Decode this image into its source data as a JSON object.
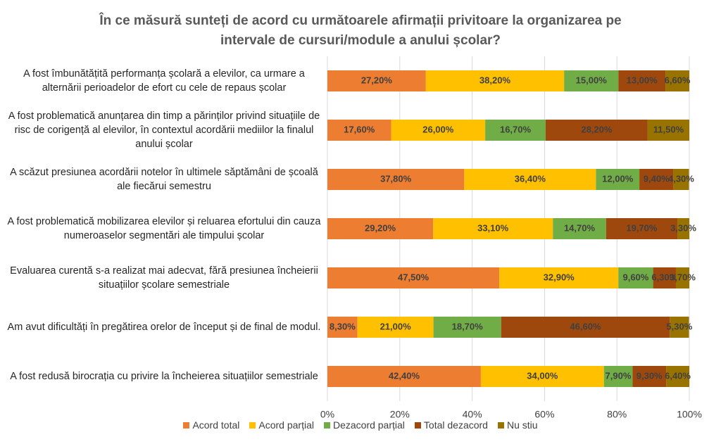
{
  "chart_data": {
    "type": "stacked_bar_horizontal",
    "title": "În ce măsură sunteți de acord cu următoarele afirmații privitoare la organizarea pe intervale de cursuri/module a anului școlar?",
    "categories": [
      "A fost îmbunătățită performanța școlară a elevilor, ca urmare a alternării perioadelor de efort cu cele de repaus școlar",
      "A fost problematică anunțarea din timp a părinților privind situațiile de risc de corigență al elevilor, în contextul acordării mediilor la finalul anului școlar",
      "A scăzut presiunea acordării notelor în ultimele săptămâni de școală ale fiecărui semestru",
      "A fost problematică mobilizarea elevilor și reluarea efortului din cauza numeroaselor segmentări ale timpului școlar",
      "Evaluarea curentă s-a realizat mai adecvat, fără presiunea încheierii situațiilor școlare semestriale",
      "Am avut dificultăți în pregătirea orelor de început și de final de modul.",
      "A fost redusă birocrația cu privire la încheierea situațiilor semestriale"
    ],
    "series": [
      {
        "name": "Acord total",
        "color": "#ED7D31",
        "values": [
          27.2,
          17.6,
          37.8,
          29.2,
          47.5,
          8.3,
          42.4
        ],
        "value_labels": [
          "27,20%",
          "17,60%",
          "37,80%",
          "29,20%",
          "47,50%",
          "8,30%",
          "42,40%"
        ]
      },
      {
        "name": "Acord parțial",
        "color": "#FFC000",
        "values": [
          38.2,
          26.0,
          36.4,
          33.1,
          32.9,
          21.0,
          34.0
        ],
        "value_labels": [
          "38,20%",
          "26,00%",
          "36,40%",
          "33,10%",
          "32,90%",
          "21,00%",
          "34,00%"
        ]
      },
      {
        "name": "Dezacord parțial",
        "color": "#70AD47",
        "values": [
          15.0,
          16.7,
          12.0,
          14.7,
          9.6,
          18.7,
          7.9
        ],
        "value_labels": [
          "15,00%",
          "16,70%",
          "12,00%",
          "14,70%",
          "9,60%",
          "18,70%",
          "7,90%"
        ]
      },
      {
        "name": "Total dezacord",
        "color": "#9E480E",
        "values": [
          13.0,
          28.2,
          9.4,
          19.7,
          6.3,
          46.6,
          9.3
        ],
        "value_labels": [
          "13,00%",
          "28,20%",
          "9,40%",
          "19,70%",
          "6,30%",
          "46,60%",
          "9,30%"
        ]
      },
      {
        "name": "Nu stiu",
        "color": "#997300",
        "values": [
          6.6,
          11.5,
          4.3,
          3.3,
          3.7,
          5.3,
          6.4
        ],
        "value_labels": [
          "6,60%",
          "11,50%",
          "4,30%",
          "3,30%",
          "3,70%",
          "5,30%",
          "6,40%"
        ]
      }
    ],
    "xlim": [
      0,
      100
    ],
    "xticks": [
      {
        "value": 0,
        "label": "0%"
      },
      {
        "value": 20,
        "label": "20%"
      },
      {
        "value": 40,
        "label": "40%"
      },
      {
        "value": 60,
        "label": "60%"
      },
      {
        "value": 80,
        "label": "80%"
      },
      {
        "value": 100,
        "label": "100%"
      }
    ],
    "grid": true
  }
}
